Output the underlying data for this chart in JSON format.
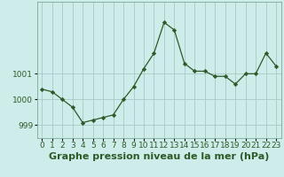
{
  "x": [
    0,
    1,
    2,
    3,
    4,
    5,
    6,
    7,
    8,
    9,
    10,
    11,
    12,
    13,
    14,
    15,
    16,
    17,
    18,
    19,
    20,
    21,
    22,
    23
  ],
  "y": [
    1000.4,
    1000.3,
    1000.0,
    999.7,
    999.1,
    999.2,
    999.3,
    999.4,
    1000.0,
    1000.5,
    1001.2,
    1001.8,
    1003.0,
    1002.7,
    1001.4,
    1001.1,
    1001.1,
    1000.9,
    1000.9,
    1000.6,
    1001.0,
    1001.0,
    1001.8,
    1001.3
  ],
  "line_color": "#2d5a27",
  "marker": "D",
  "marker_size": 2.2,
  "bg_color": "#ceecea",
  "grid_color": "#a8c8c6",
  "title": "Graphe pression niveau de la mer (hPa)",
  "yticks": [
    999,
    1000,
    1001
  ],
  "ylim": [
    998.5,
    1003.8
  ],
  "xlim": [
    -0.5,
    23.5
  ],
  "title_fontsize": 8,
  "tick_fontsize": 6.5,
  "title_color": "#2d5a27",
  "tick_color": "#2d5a27",
  "spine_color": "#7aaa9a"
}
